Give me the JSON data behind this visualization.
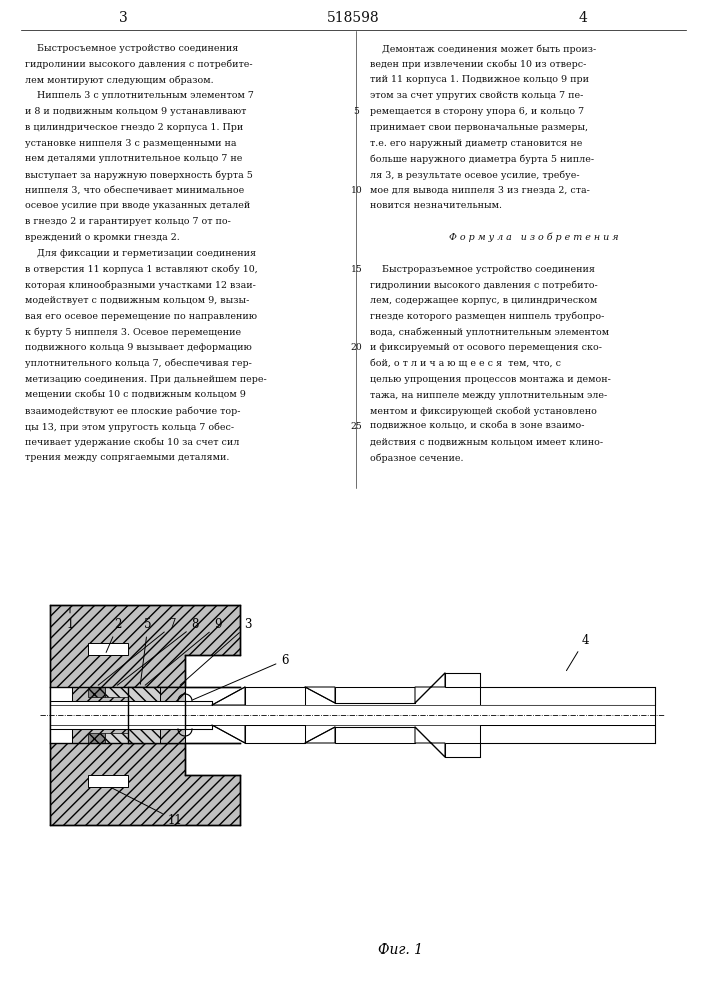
{
  "page_num_left": "3",
  "page_num_center": "518598",
  "page_num_right": "4",
  "col1_lines": [
    "    Быстросъемное устройство соединения",
    "гидролинии высокого давления с потребите-",
    "лем монтируют следующим образом.",
    "    Ниппель 3 с уплотнительным элементом 7",
    "и 8 и подвижным кольцом 9 устанавливают",
    "в цилиндрическое гнездо 2 корпуса 1. При",
    "установке ниппеля 3 с размещенными на",
    "нем деталями уплотнительное кольцо 7 не",
    "выступает за наружную поверхность бурта 5",
    "ниппеля 3, что обеспечивает минимальное",
    "осевое усилие при вводе указанных деталей",
    "в гнездо 2 и гарантирует кольцо 7 от по-",
    "вреждений о кромки гнезда 2.",
    "    Для фиксации и герметизации соединения",
    "в отверстия 11 корпуса 1 вставляют скобу 10,",
    "которая клинообразными участками 12 взаи-",
    "модействует с подвижным кольцом 9, вызы-",
    "вая его осевое перемещение по направлению",
    "к бурту 5 ниппеля 3. Осевое перемещение",
    "подвижного кольца 9 вызывает деформацию",
    "уплотнительного кольца 7, обеспечивая гер-",
    "метизацию соединения. При дальнейшем пере-",
    "мещении скобы 10 с подвижным кольцом 9",
    "взаимодействуют ее плоские рабочие тор-",
    "цы 13, при этом упругость кольца 7 обес-",
    "печивает удержание скобы 10 за счет сил",
    "трения между сопрягаемыми деталями."
  ],
  "col2_lines": [
    "    Демонтаж соединения может быть произ-",
    "веден при извлечении скобы 10 из отверс-",
    "тий 11 корпуса 1. Подвижное кольцо 9 при",
    "этом за счет упругих свойств кольца 7 пе-",
    "ремещается в сторону упора 6, и кольцо 7",
    "принимает свои первоначальные размеры,",
    "т.е. его наружный диаметр становится не",
    "больше наружного диаметра бурта 5 нипле-",
    "ля 3, в результате осевое усилие, требуе-",
    "мое для вывода ниппеля 3 из гнезда 2, ста-",
    "новится незначительным.",
    "",
    "Ф о р м у л а   и з о б р е т е н и я",
    "",
    "    Быстроразъемное устройство соединения",
    "гидролинии высокого давления с потребито-",
    "лем, содержащее корпус, в цилиндрическом",
    "гнезде которого размещен ниппель трубопро-",
    "вода, снабженный уплотнительным элементом",
    "и фиксируемый от осового перемещения ско-",
    "бой, о т л и ч а ю щ е е с я  тем, что, с",
    "целью упрощения процессов монтажа и демон-",
    "тажа, на ниппеле между уплотнительным эле-",
    "ментом и фиксирующей скобой установлено",
    "подвижное кольцо, и скоба в зоне взаимо-",
    "действия с подвижным кольцом имеет клино-",
    "образное сечение."
  ],
  "line_num_rows": [
    4,
    9,
    14,
    19,
    24
  ],
  "line_num_vals": [
    "5",
    "10",
    "15",
    "20",
    "25"
  ],
  "figure_caption": "Фиг. 1",
  "bg": "#ffffff",
  "tc": "#111111"
}
